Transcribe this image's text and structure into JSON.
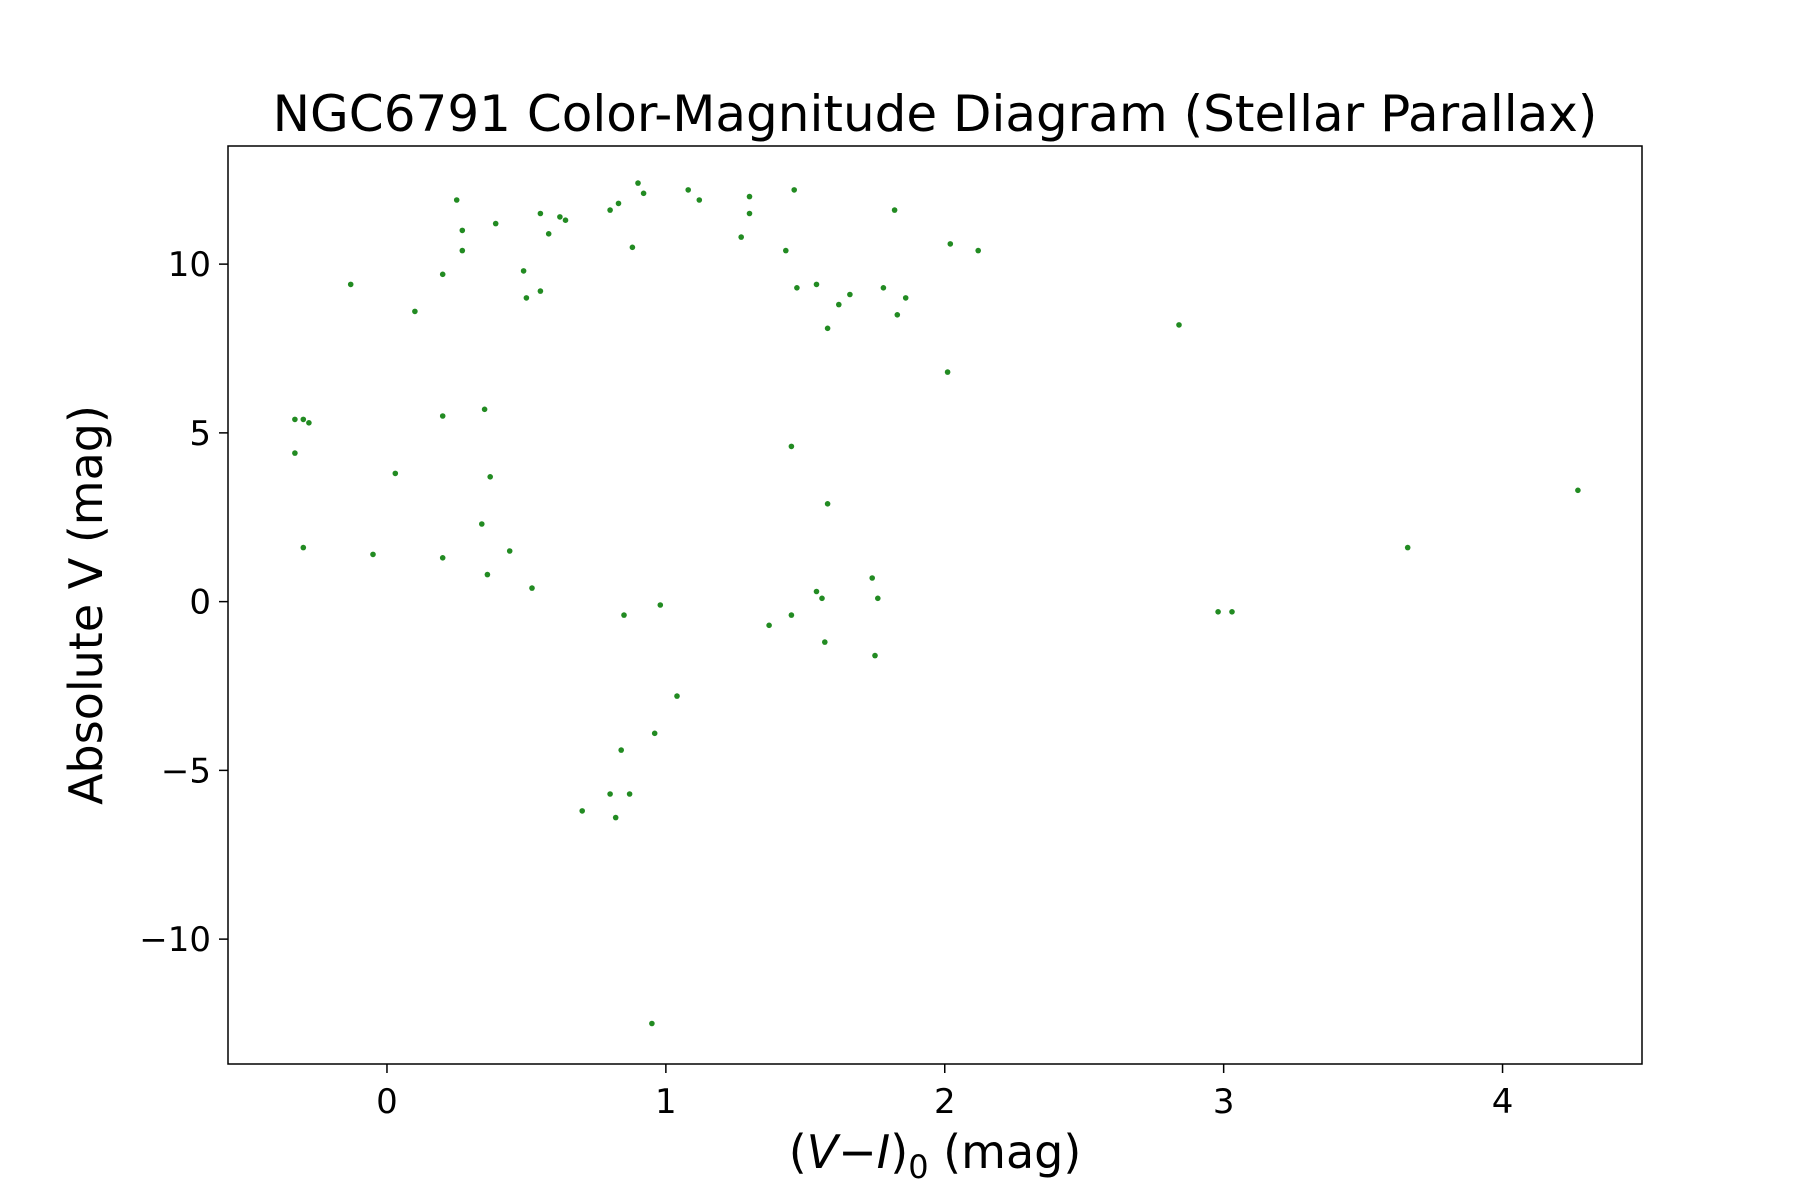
{
  "chart_data": {
    "type": "scatter",
    "title": "NGC6791 Color-Magnitude Diagram (Stellar Parallax)",
    "xlabel": {
      "open": "(",
      "v": "V",
      "minus": "−",
      "i": "I",
      "close": ")",
      "sub": "0",
      "unit": " (mag)"
    },
    "ylabel": "Absolute V (mag)",
    "xlim": [
      -0.57,
      4.5
    ],
    "ylim": [
      -13.7,
      13.5
    ],
    "xticks": [
      0,
      1,
      2,
      3,
      4
    ],
    "xtick_labels": [
      "0",
      "1",
      "2",
      "3",
      "4"
    ],
    "yticks": [
      10,
      5,
      0,
      -5,
      -10
    ],
    "ytick_labels": [
      "10",
      "5",
      "0",
      "−5",
      "−10"
    ],
    "grid": false,
    "marker_color": "#228b22",
    "points": {
      "x": [
        0.25,
        0.27,
        0.27,
        0.39,
        0.55,
        0.58,
        0.62,
        0.64,
        0.49,
        0.8,
        0.83,
        0.9,
        0.92,
        0.88,
        1.08,
        1.12,
        1.3,
        1.3,
        1.46,
        1.27,
        1.43,
        1.82,
        2.02,
        2.12,
        -0.13,
        0.1,
        0.2,
        0.55,
        0.5,
        1.47,
        1.54,
        1.62,
        1.66,
        1.78,
        1.83,
        1.86,
        1.58,
        2.84,
        2.01,
        -0.33,
        -0.3,
        -0.28,
        -0.33,
        -0.3,
        0.2,
        0.35,
        0.03,
        -0.05,
        0.2,
        0.34,
        0.36,
        0.37,
        0.44,
        0.52,
        1.45,
        1.58,
        1.54,
        1.56,
        1.74,
        1.76,
        1.75,
        1.37,
        1.45,
        1.57,
        0.98,
        0.85,
        0.7,
        0.82,
        0.8,
        0.96,
        0.84,
        0.87,
        1.04,
        2.98,
        3.03,
        3.66,
        4.27,
        0.95
      ],
      "y": [
        11.9,
        11.0,
        10.4,
        11.2,
        11.5,
        10.9,
        11.4,
        11.3,
        9.8,
        11.6,
        11.8,
        12.4,
        12.1,
        10.5,
        12.2,
        11.9,
        12.0,
        11.5,
        12.2,
        10.8,
        10.4,
        11.6,
        10.6,
        10.4,
        9.4,
        8.6,
        9.7,
        9.2,
        9.0,
        9.3,
        9.4,
        8.8,
        9.1,
        9.3,
        8.5,
        9.0,
        8.1,
        8.2,
        6.8,
        5.4,
        5.4,
        5.3,
        4.4,
        1.6,
        5.5,
        5.7,
        3.8,
        1.4,
        1.3,
        2.3,
        0.8,
        3.7,
        1.5,
        0.4,
        4.6,
        2.9,
        0.3,
        0.1,
        0.7,
        0.1,
        -1.6,
        -0.7,
        -0.4,
        -1.2,
        -0.1,
        -0.4,
        -6.2,
        -6.4,
        -5.7,
        -3.9,
        -4.4,
        -5.7,
        -2.8,
        -0.3,
        -0.3,
        1.6,
        3.3,
        -12.5
      ]
    }
  }
}
